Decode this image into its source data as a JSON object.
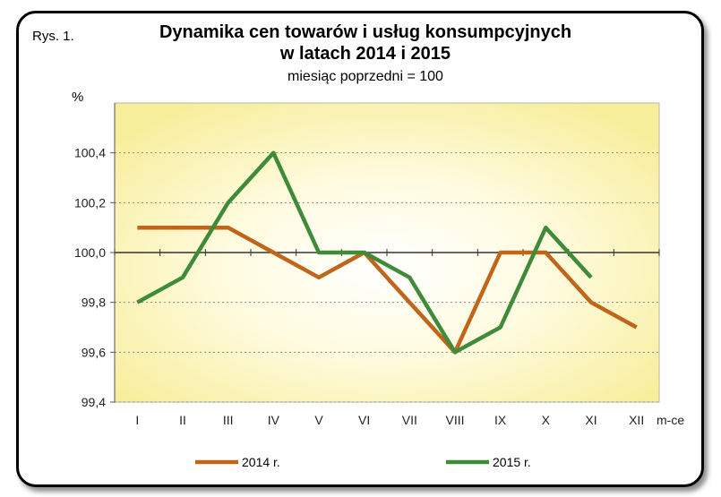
{
  "chart_data": {
    "type": "line",
    "figure_label": "Rys. 1.",
    "title_line1": "Dynamika cen towarów i usług konsumpcyjnych",
    "title_line2": "w latach 2014 i 2015",
    "subtitle": "miesiąc poprzedni = 100",
    "ylabel": "%",
    "xlabel": "m-ce",
    "categories": [
      "I",
      "II",
      "III",
      "IV",
      "V",
      "VI",
      "VII",
      "VIII",
      "IX",
      "X",
      "XI",
      "XII"
    ],
    "y_tick_labels": [
      "99,4",
      "99,6",
      "99,8",
      "100,0",
      "100,2",
      "100,4"
    ],
    "y_ticks": [
      99.4,
      99.6,
      99.8,
      100.0,
      100.2,
      100.4
    ],
    "ylim": [
      99.4,
      100.6
    ],
    "reference_line": 100.0,
    "grid": true,
    "legend_position": "bottom",
    "series": [
      {
        "name": "2014 r.",
        "color": "#c0651a",
        "values": [
          100.1,
          100.1,
          100.1,
          100.0,
          99.9,
          100.0,
          99.8,
          99.6,
          100.0,
          100.0,
          99.8,
          99.7
        ]
      },
      {
        "name": "2015 r.",
        "color": "#3f8b3a",
        "values": [
          99.8,
          99.9,
          100.2,
          100.4,
          100.0,
          100.0,
          99.9,
          99.6,
          99.7,
          100.1,
          99.9,
          null
        ]
      }
    ]
  }
}
